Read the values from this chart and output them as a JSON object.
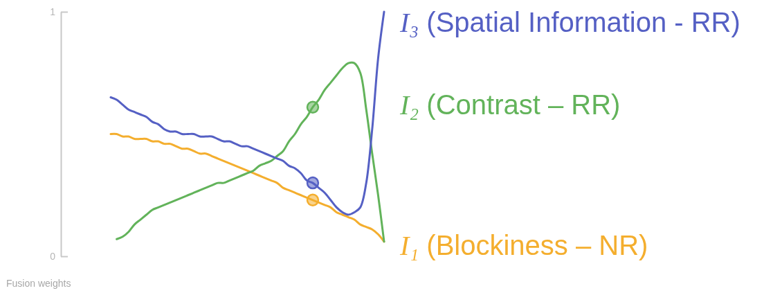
{
  "chart_data": {
    "type": "line",
    "ylabel": "Fusion weights",
    "categories": [
      null,
      null,
      null,
      null,
      null,
      null,
      null,
      null,
      null,
      null,
      null,
      null,
      null,
      null,
      null,
      null,
      null,
      null,
      null,
      null,
      null,
      null,
      null,
      null,
      null,
      null,
      null,
      null,
      null,
      null,
      null,
      null,
      null,
      null,
      null,
      null,
      null,
      null,
      null,
      null,
      null,
      null,
      null,
      null,
      null,
      null,
      null
    ],
    "ylim": [
      0,
      1
    ],
    "yticks": [
      0,
      1
    ],
    "tick_labels": "y",
    "series": [
      {
        "name": "I₁ (Blockiness – NR)",
        "color": "#f4ae2e",
        "values": [
          0.5,
          0.5,
          0.49,
          0.49,
          0.48,
          0.48,
          0.48,
          0.47,
          0.47,
          0.46,
          0.46,
          0.45,
          0.44,
          0.44,
          0.43,
          0.42,
          0.42,
          0.41,
          0.4,
          0.39,
          0.38,
          0.37,
          0.36,
          0.35,
          0.34,
          0.33,
          0.32,
          0.31,
          0.3,
          0.28,
          0.27,
          0.26,
          0.25,
          0.24,
          0.23,
          0.22,
          0.21,
          0.2,
          0.18,
          0.17,
          0.16,
          0.15,
          0.13,
          0.12,
          0.11,
          0.09,
          0.06
        ]
      },
      {
        "name": "I₂ (Contrast – RR)",
        "color": "#62b35a",
        "values": [
          null,
          0.07,
          0.08,
          0.1,
          0.13,
          0.15,
          0.17,
          0.19,
          0.2,
          0.21,
          0.22,
          0.23,
          0.24,
          0.25,
          0.26,
          0.27,
          0.28,
          0.29,
          0.3,
          0.3,
          0.31,
          0.32,
          0.33,
          0.34,
          0.35,
          0.37,
          0.38,
          0.39,
          0.41,
          0.43,
          0.47,
          0.5,
          0.54,
          0.57,
          0.61,
          0.64,
          0.68,
          0.71,
          0.74,
          0.77,
          0.79,
          0.79,
          0.75,
          0.6,
          0.42,
          0.25,
          0.06
        ]
      },
      {
        "name": "I₃ (Spatial Information - RR)",
        "color": "#5560c4",
        "values": [
          0.65,
          0.64,
          0.62,
          0.6,
          0.59,
          0.58,
          0.57,
          0.55,
          0.54,
          0.52,
          0.51,
          0.51,
          0.5,
          0.5,
          0.5,
          0.49,
          0.49,
          0.49,
          0.48,
          0.47,
          0.47,
          0.46,
          0.45,
          0.45,
          0.44,
          0.43,
          0.42,
          0.41,
          0.4,
          0.39,
          0.37,
          0.36,
          0.34,
          0.31,
          0.3,
          0.28,
          0.26,
          0.23,
          0.2,
          0.18,
          0.17,
          0.18,
          0.2,
          0.3,
          0.52,
          0.81,
          1.0
        ]
      },
      {
        "type": "scatter",
        "marker": "circle",
        "color": "#f4ae2e",
        "values": [
          null,
          null,
          null,
          null,
          null,
          null,
          null,
          null,
          null,
          null,
          null,
          null,
          null,
          null,
          null,
          null,
          null,
          null,
          null,
          null,
          null,
          null,
          null,
          null,
          null,
          null,
          null,
          null,
          null,
          null,
          null,
          null,
          null,
          null,
          0.23,
          null,
          null,
          null,
          null,
          null,
          null,
          null,
          null,
          null,
          null,
          null,
          null
        ]
      },
      {
        "type": "scatter",
        "marker": "circle",
        "color": "#62b35a",
        "values": [
          null,
          null,
          null,
          null,
          null,
          null,
          null,
          null,
          null,
          null,
          null,
          null,
          null,
          null,
          null,
          null,
          null,
          null,
          null,
          null,
          null,
          null,
          null,
          null,
          null,
          null,
          null,
          null,
          null,
          null,
          null,
          null,
          null,
          null,
          0.61,
          null,
          null,
          null,
          null,
          null,
          null,
          null,
          null,
          null,
          null,
          null,
          null
        ]
      },
      {
        "type": "scatter",
        "marker": "circle",
        "color": "#5560c4",
        "values": [
          null,
          null,
          null,
          null,
          null,
          null,
          null,
          null,
          null,
          null,
          null,
          null,
          null,
          null,
          null,
          null,
          null,
          null,
          null,
          null,
          null,
          null,
          null,
          null,
          null,
          null,
          null,
          null,
          null,
          null,
          null,
          null,
          null,
          null,
          0.3,
          null,
          null,
          null,
          null,
          null,
          null,
          null,
          null,
          null,
          null,
          null,
          null
        ]
      }
    ]
  }
}
